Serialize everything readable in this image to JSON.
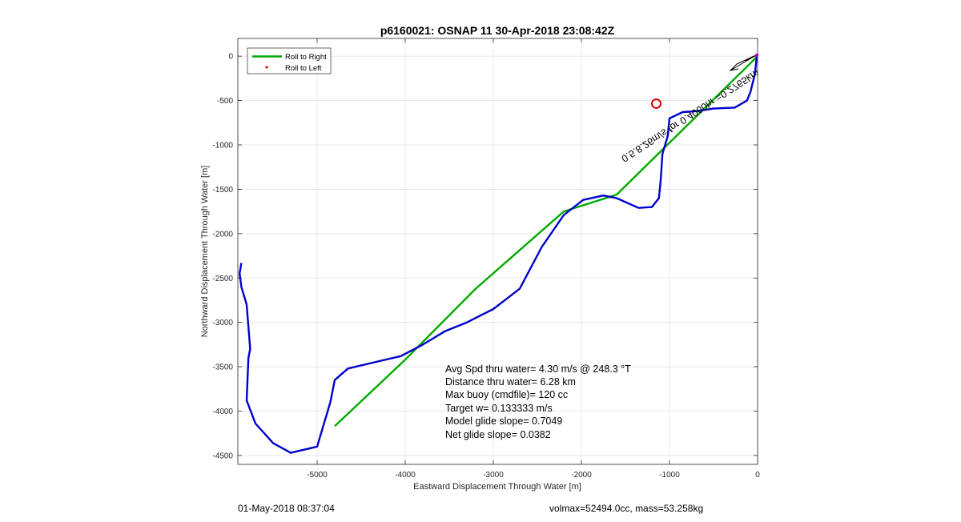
{
  "chart_data": {
    "type": "line",
    "title": "p6160021: OSNAP 11 30-Apr-2018 23:08:42Z",
    "xlabel": "Eastward Displacement Through Water [m]",
    "ylabel": "Northward Displacement Through Water [m]",
    "xlim": [
      -5900,
      0
    ],
    "ylim": [
      -4600,
      200
    ],
    "xticks": [
      -5000,
      -4000,
      -3000,
      -2000,
      -1000,
      0
    ],
    "yticks": [
      0,
      -500,
      -1000,
      -1500,
      -2000,
      -2500,
      -3000,
      -3500,
      -4000,
      -4500
    ],
    "grid": true,
    "legend_position": "top-left",
    "legend": [
      "Roll to Right",
      "Roll to Left"
    ],
    "colors": {
      "roll_right": "#00aa00",
      "track": "#0000cc",
      "roll_left": "#ff0000",
      "target": "#d40000",
      "arrow": "#000000",
      "marker": "#c000c0"
    },
    "series": [
      {
        "name": "Roll to Right",
        "x": [
          0,
          -1600,
          -1600,
          -2200,
          -3200,
          -4000,
          -4800
        ],
        "y": [
          0,
          -1560,
          -1560,
          -1750,
          -2620,
          -3420,
          -4170
        ]
      },
      {
        "x": [
          -10,
          -30,
          -80,
          -120,
          -260,
          -500,
          -700,
          -850,
          -1000,
          -1020,
          -1080,
          -1100,
          -1120,
          -1200,
          -1350,
          -1600,
          -1750,
          -1980,
          -2200,
          -2450,
          -2700,
          -3000,
          -3300,
          -3550,
          -3800,
          -4050,
          -4350,
          -4650,
          -4800,
          -4850,
          -5000,
          -5300,
          -5500,
          -5700,
          -5800,
          -5780,
          -5760,
          -5800,
          -5860,
          -5880,
          -5860
        ],
        "y": [
          0,
          -200,
          -400,
          -500,
          -580,
          -590,
          -620,
          -630,
          -700,
          -900,
          -1100,
          -1400,
          -1600,
          -1700,
          -1710,
          -1600,
          -1570,
          -1620,
          -1790,
          -2150,
          -2620,
          -2850,
          -3000,
          -3100,
          -3250,
          -3380,
          -3450,
          -3520,
          -3650,
          -3900,
          -4400,
          -4470,
          -4360,
          -4140,
          -3880,
          -3400,
          -3300,
          -2800,
          -2600,
          -2450,
          -2330
        ]
      },
      {
        "name": "Roll to Left",
        "x": [],
        "y": []
      }
    ],
    "target_marker": {
      "x": -1150,
      "y": -535
    },
    "current_direction_label": "0.5.8.26m/s for 0.4060hr =0.2765km",
    "stats": [
      "Avg Spd thru water=  4.30 m/s @ 248.3 °T",
      "Distance thru water=  6.28 km",
      "Max buoy (cmdfile)= 120 cc",
      "Target w= 0.133333 m/s",
      "Model glide slope= 0.7049",
      "Net glide slope= 0.0382"
    ]
  },
  "footer": {
    "left": "01-May-2018 08:37:04",
    "right": "volmax=52494.0cc, mass=53.258kg"
  }
}
